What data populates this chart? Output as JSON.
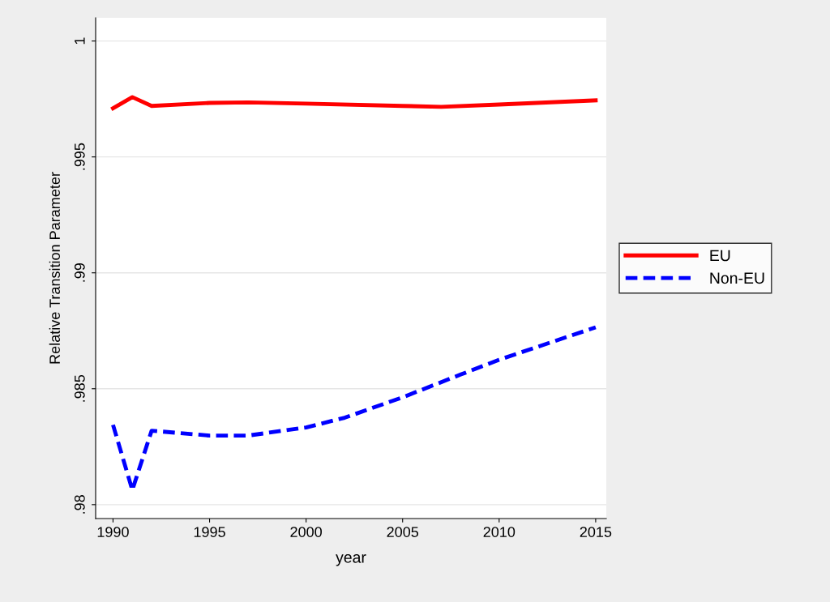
{
  "chart_data": {
    "type": "line",
    "xlabel": "year",
    "ylabel": "Relative Transition Parameter",
    "xlim": [
      1989.1,
      2015.55
    ],
    "ylim": [
      0.9794,
      1.001
    ],
    "xticks": [
      1990,
      1995,
      2000,
      2005,
      2010,
      2015
    ],
    "yticks": [
      {
        "value": 0.98,
        "label": ".98"
      },
      {
        "value": 0.985,
        "label": ".985"
      },
      {
        "value": 0.99,
        "label": ".99"
      },
      {
        "value": 0.995,
        "label": ".995"
      },
      1
    ],
    "grid": "y",
    "legend": "right",
    "series": [
      {
        "name": "EU",
        "color": "#ff0000",
        "line_style": "solid",
        "x": [
          1990,
          1991,
          1992,
          1995,
          1997,
          2000,
          2005,
          2007,
          2010,
          2015
        ],
        "values": [
          0.9971,
          0.99758,
          0.9972,
          0.99733,
          0.99735,
          0.9973,
          0.9972,
          0.99716,
          0.99726,
          0.99744
        ]
      },
      {
        "name": "Non-EU",
        "color": "#0000ff",
        "line_style": "dashed",
        "x": [
          1990,
          1991,
          1992,
          1995,
          1997,
          2000,
          2002,
          2005,
          2008,
          2010,
          2012,
          2015
        ],
        "values": [
          0.98344,
          0.98063,
          0.98319,
          0.98298,
          0.98298,
          0.98333,
          0.98375,
          0.98463,
          0.98561,
          0.98625,
          0.98681,
          0.98765
        ]
      }
    ]
  }
}
